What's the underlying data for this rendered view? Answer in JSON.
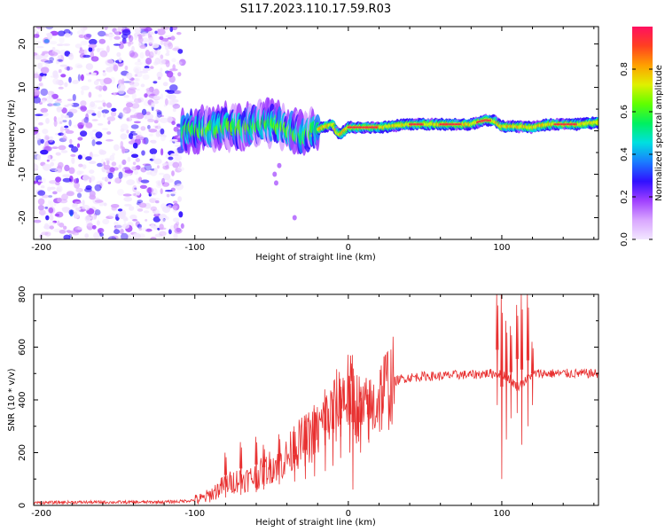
{
  "title": "S117.2023.110.17.59.R03",
  "chart_data": [
    {
      "type": "heatmap",
      "xlabel": "Height of straight line (km)",
      "ylabel": "Frequency (Hz)",
      "xlim": [
        -205,
        163
      ],
      "ylim": [
        -25,
        24
      ],
      "xticks": [
        -200,
        -100,
        0,
        100
      ],
      "yticks": [
        -20,
        -10,
        0,
        10,
        20
      ],
      "noise_region_x": [
        -205,
        -108
      ],
      "ridge": [
        {
          "x": -108,
          "y": 0.0
        },
        {
          "x": -100,
          "y": 0.5
        },
        {
          "x": -90,
          "y": 0.3
        },
        {
          "x": -80,
          "y": 1.0
        },
        {
          "x": -70,
          "y": 0.5
        },
        {
          "x": -60,
          "y": 1.5
        },
        {
          "x": -50,
          "y": 1.8
        },
        {
          "x": -40,
          "y": 0.5
        },
        {
          "x": -30,
          "y": -1.0
        },
        {
          "x": -25,
          "y": 0.0
        },
        {
          "x": -20,
          "y": 0.3
        },
        {
          "x": -15,
          "y": 1.0
        },
        {
          "x": -10,
          "y": 1.5
        },
        {
          "x": -7,
          "y": -0.5
        },
        {
          "x": -5,
          "y": -0.8
        },
        {
          "x": 0,
          "y": 0.8
        },
        {
          "x": 20,
          "y": 0.8
        },
        {
          "x": 40,
          "y": 1.5
        },
        {
          "x": 60,
          "y": 1.5
        },
        {
          "x": 80,
          "y": 1.5
        },
        {
          "x": 90,
          "y": 2.5
        },
        {
          "x": 95,
          "y": 2.3
        },
        {
          "x": 100,
          "y": 1.0
        },
        {
          "x": 110,
          "y": 1.0
        },
        {
          "x": 120,
          "y": 0.8
        },
        {
          "x": 130,
          "y": 1.5
        },
        {
          "x": 150,
          "y": 1.5
        },
        {
          "x": 163,
          "y": 2.0
        }
      ],
      "colorbar": {
        "label": "Normalized spectral amplitude",
        "range": [
          0.0,
          1.0
        ],
        "ticks": [
          0.0,
          0.2,
          0.4,
          0.6,
          0.8
        ],
        "colors": [
          "#f2e6ff",
          "#d9a6ff",
          "#a040ff",
          "#3010ff",
          "#1a7cff",
          "#00e0e0",
          "#00f060",
          "#60ff00",
          "#e0f000",
          "#ffa000",
          "#ff4020",
          "#ff1060"
        ]
      }
    },
    {
      "type": "line",
      "xlabel": "Height of straight line (km)",
      "ylabel": "SNR (10 * v/v)",
      "xlim": [
        -205,
        163
      ],
      "ylim": [
        0,
        800
      ],
      "xticks": [
        -200,
        -100,
        0,
        100
      ],
      "yticks": [
        0,
        200,
        400,
        600,
        800
      ],
      "line_color": "#e83030",
      "x": [
        -205,
        -180,
        -160,
        -140,
        -120,
        -110,
        -100,
        -95,
        -90,
        -85,
        -80,
        -75,
        -70,
        -65,
        -60,
        -55,
        -50,
        -45,
        -40,
        -35,
        -30,
        -25,
        -20,
        -15,
        -10,
        -5,
        0,
        5,
        10,
        15,
        20,
        25,
        30,
        35,
        40,
        50,
        60,
        70,
        80,
        90,
        95,
        100,
        105,
        110,
        115,
        120,
        130,
        140,
        150,
        163
      ],
      "values": [
        10,
        12,
        12,
        12,
        13,
        15,
        20,
        25,
        40,
        60,
        80,
        90,
        100,
        100,
        110,
        130,
        150,
        160,
        180,
        220,
        240,
        260,
        280,
        320,
        350,
        400,
        430,
        380,
        350,
        360,
        410,
        450,
        470,
        480,
        485,
        490,
        490,
        495,
        495,
        500,
        500,
        500,
        480,
        450,
        470,
        500,
        500,
        500,
        500,
        500
      ],
      "spikes": [
        {
          "x": -80,
          "lo": 30,
          "hi": 200
        },
        {
          "x": -70,
          "lo": 40,
          "hi": 240
        },
        {
          "x": -60,
          "lo": 50,
          "hi": 260
        },
        {
          "x": -55,
          "lo": 60,
          "hi": 230
        },
        {
          "x": -45,
          "lo": 80,
          "hi": 270
        },
        {
          "x": -35,
          "lo": 90,
          "hi": 300
        },
        {
          "x": -28,
          "lo": 100,
          "hi": 320
        },
        {
          "x": -22,
          "lo": 110,
          "hi": 380
        },
        {
          "x": -15,
          "lo": 130,
          "hi": 440
        },
        {
          "x": -10,
          "lo": 150,
          "hi": 430
        },
        {
          "x": -5,
          "lo": 180,
          "hi": 480
        },
        {
          "x": 1,
          "lo": 200,
          "hi": 490
        },
        {
          "x": 3,
          "lo": 60,
          "hi": 570
        },
        {
          "x": 8,
          "lo": 200,
          "hi": 430
        },
        {
          "x": 13,
          "lo": 250,
          "hi": 440
        },
        {
          "x": 97,
          "lo": 380,
          "hi": 800
        },
        {
          "x": 100,
          "lo": 100,
          "hi": 800
        },
        {
          "x": 103,
          "lo": 250,
          "hi": 700
        },
        {
          "x": 106,
          "lo": 330,
          "hi": 680
        },
        {
          "x": 110,
          "lo": 350,
          "hi": 760
        },
        {
          "x": 113,
          "lo": 230,
          "hi": 800
        },
        {
          "x": 117,
          "lo": 300,
          "hi": 800
        },
        {
          "x": 120,
          "lo": 380,
          "hi": 620
        }
      ]
    }
  ]
}
